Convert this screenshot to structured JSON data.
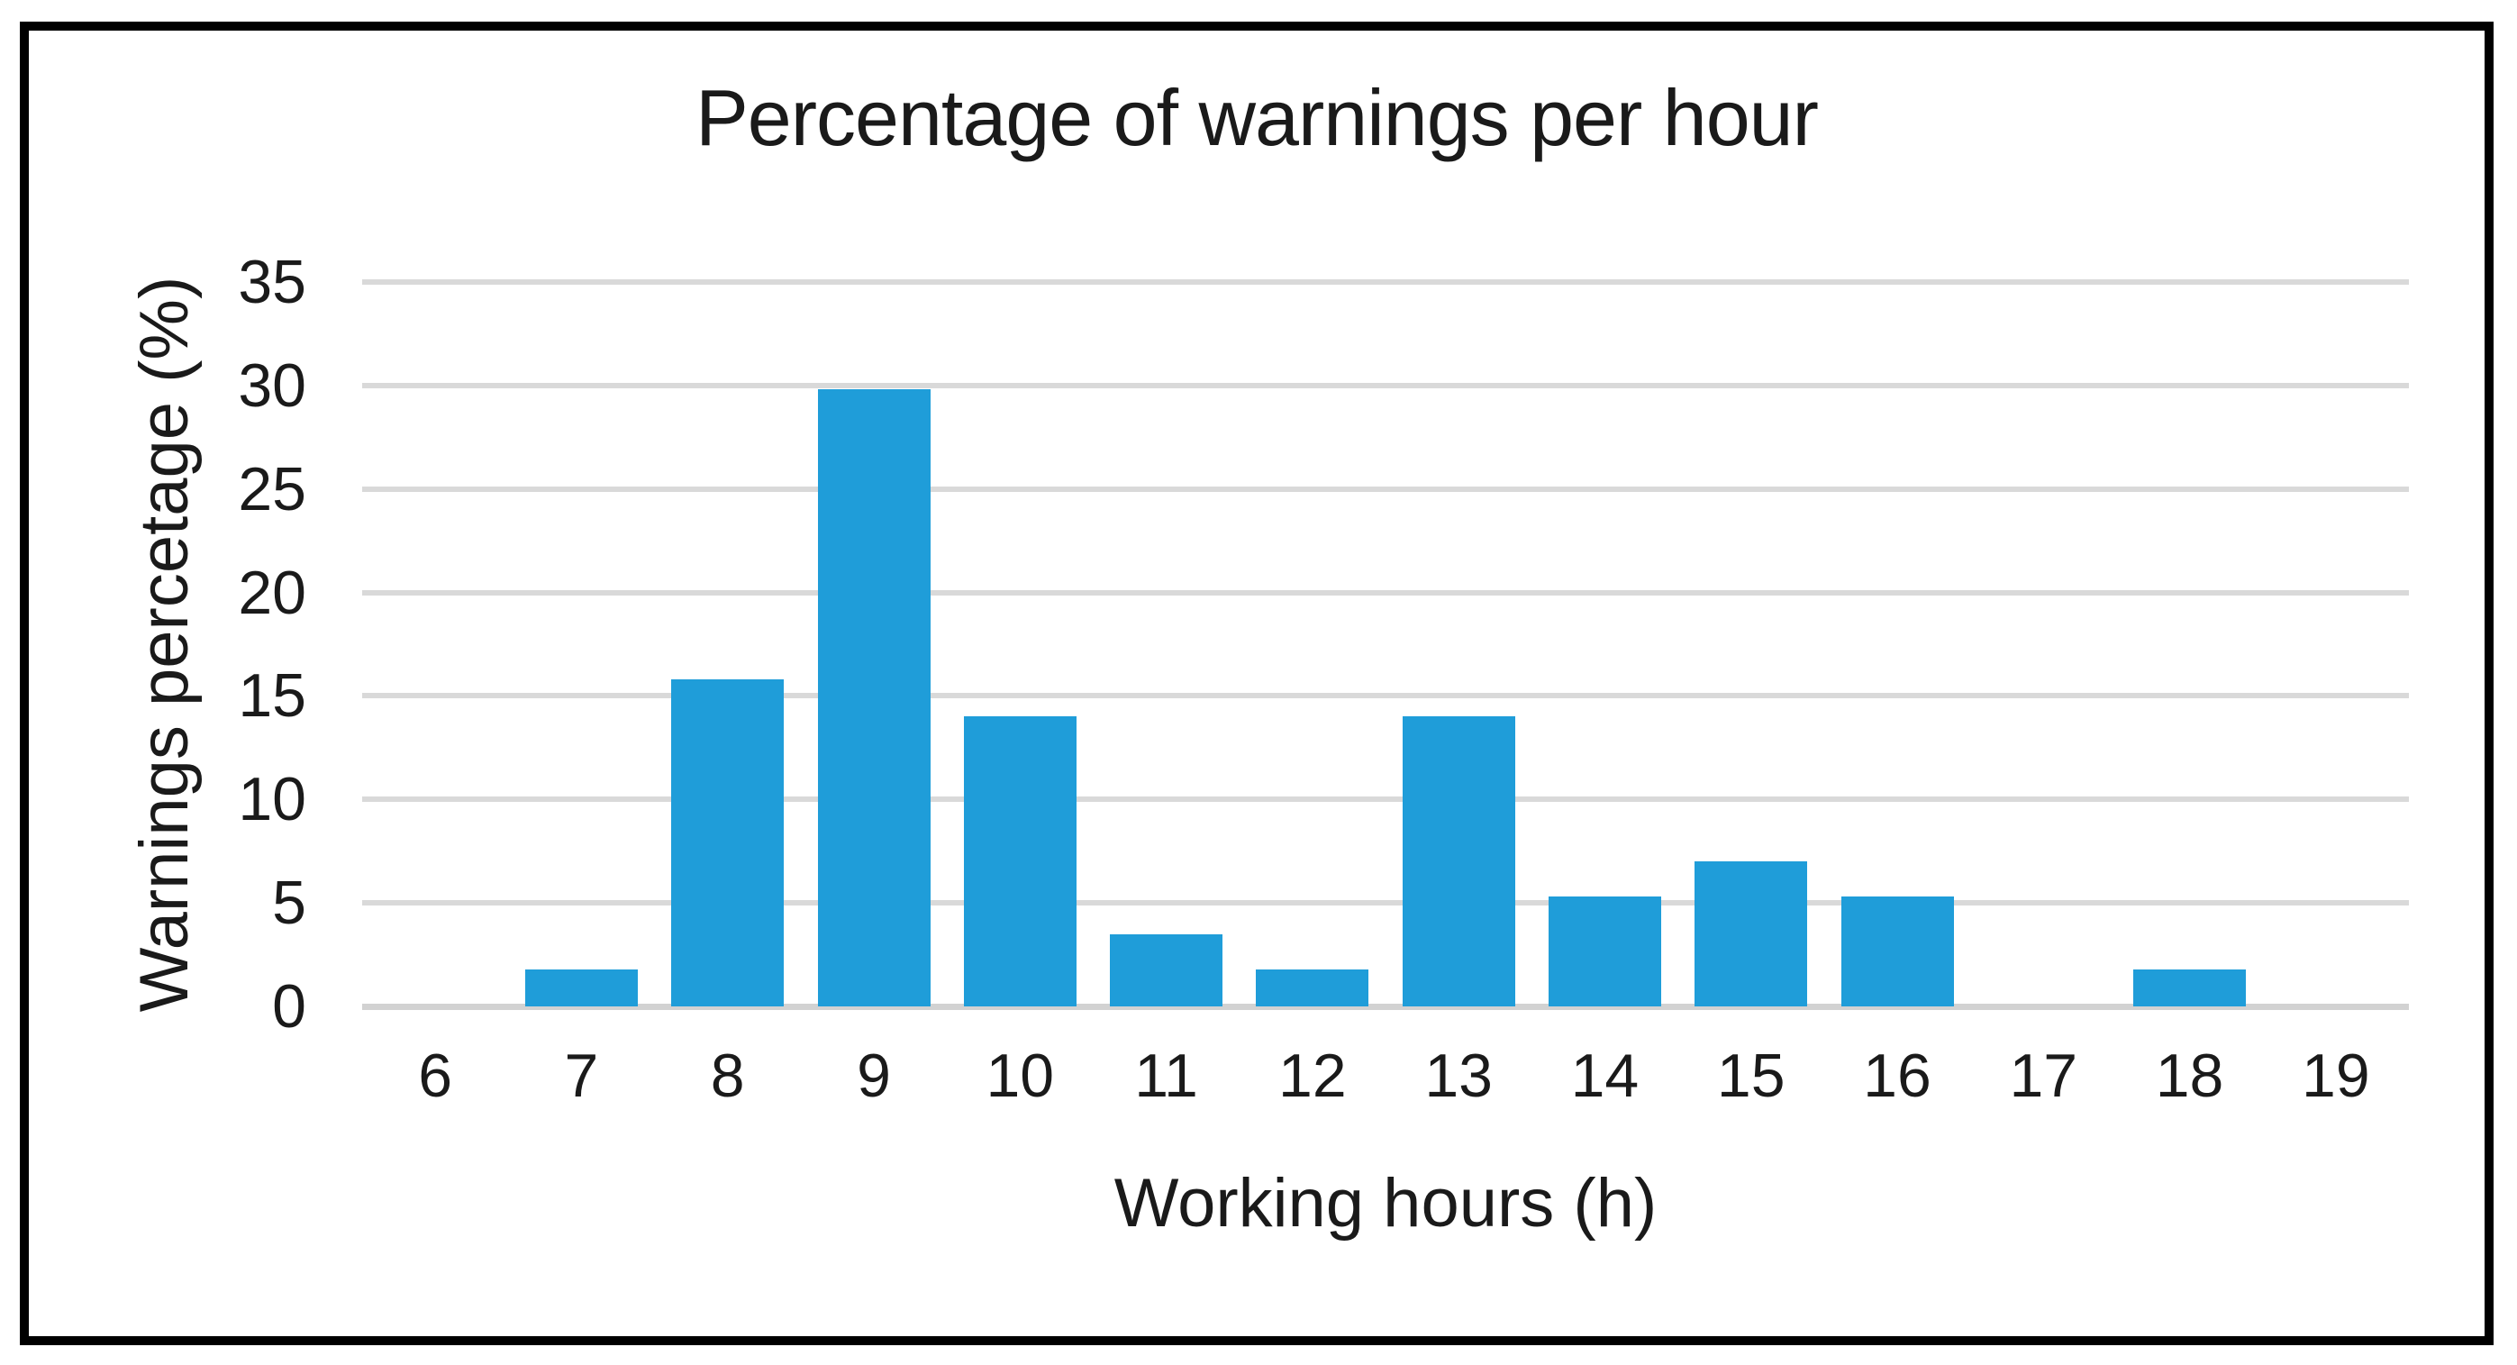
{
  "chart_data": {
    "type": "bar",
    "title": "Percentage of warnings per hour",
    "xlabel": "Working hours (h)",
    "ylabel": "Warnings percetage (%)",
    "categories": [
      "6",
      "7",
      "8",
      "9",
      "10",
      "11",
      "12",
      "13",
      "14",
      "15",
      "16",
      "17",
      "18",
      "19"
    ],
    "values": [
      0,
      1.8,
      15.8,
      29.8,
      14,
      3.5,
      1.8,
      14,
      5.3,
      7,
      5.3,
      0,
      1.8,
      0
    ],
    "ylim": [
      0,
      35
    ],
    "yticks": [
      0,
      5,
      10,
      15,
      20,
      25,
      30,
      35
    ],
    "grid": true,
    "legend": false,
    "bar_color": "#1F9DD9",
    "gridline_color": "#D9D9D9",
    "axis_line_color": "#D2D2D2",
    "text_color": "#1A1A1A",
    "frame_color": "#000000",
    "background_color": "#FFFFFF"
  }
}
